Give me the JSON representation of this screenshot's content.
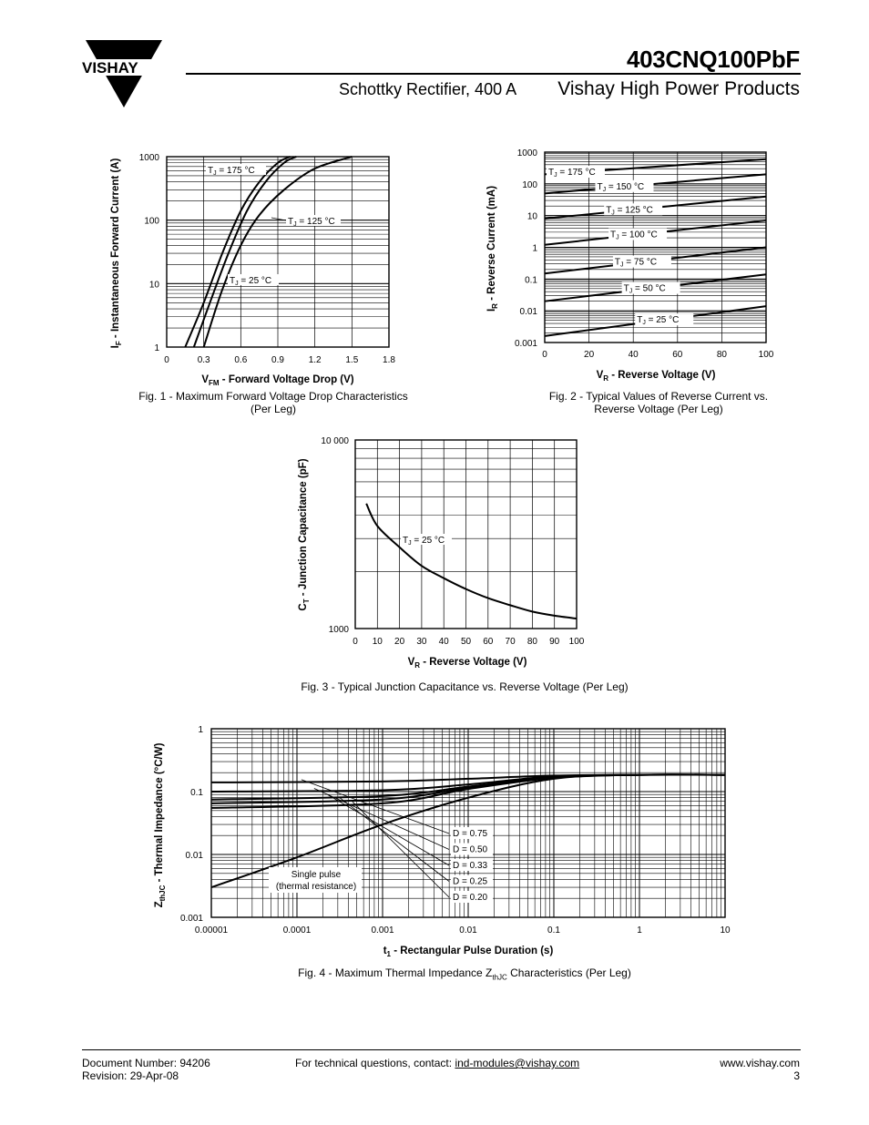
{
  "header": {
    "logo_text": "VISHAY",
    "part_number": "403CNQ100PbF",
    "subtitle_left": "Schottky Rectifier, 400 A",
    "subtitle_right": "Vishay High Power Products"
  },
  "figures": {
    "fig1": {
      "caption_line1": "Fig. 1 - Maximum Forward Voltage Drop Characteristics",
      "caption_line2": "(Per Leg)",
      "xlabel_main": "V",
      "xlabel_sub": "FM",
      "xlabel_rest": " - Forward Voltage Drop (V)",
      "ylabel_main": "I",
      "ylabel_sub": "F",
      "ylabel_rest": " - Instantaneous Forward Current (A)",
      "label_175": "= 175 °C",
      "label_125": "= 125 °C",
      "label_25": "= 25 °C"
    },
    "fig2": {
      "caption_line1": "Fig. 2 - Typical Values of Reverse Current vs.",
      "caption_line2": "Reverse Voltage (Per Leg)",
      "xlabel_main": "V",
      "xlabel_sub": "R",
      "xlabel_rest": " - Reverse Voltage (V)",
      "ylabel_main": "I",
      "ylabel_sub": "R",
      "ylabel_rest": " - Reverse Current (mA)"
    },
    "fig3": {
      "caption": "Fig. 3 - Typical Junction Capacitance vs. Reverse Voltage (Per Leg)",
      "xlabel_main": "V",
      "xlabel_sub": "R",
      "xlabel_rest": " - Reverse Voltage (V)",
      "ylabel_main": "C",
      "ylabel_sub": "T",
      "ylabel_rest": " - Junction Capacitance (pF)",
      "label_25": "= 25 °C"
    },
    "fig4": {
      "caption_pre": "Fig. 4 - Maximum Thermal Impedance Z",
      "caption_sub": "thJC",
      "caption_post": " Characteristics (Per Leg)",
      "xlabel_main": "t",
      "xlabel_sub": "1",
      "xlabel_rest": " - Rectangular Pulse Duration (s)",
      "ylabel_main": "Z",
      "ylabel_sub": "thJC",
      "ylabel_rest": " - Thermal Impedance (°C/W)",
      "single_pulse_1": "Single pulse",
      "single_pulse_2": "(thermal resistance)"
    }
  },
  "chart_data": [
    {
      "id": "fig1",
      "type": "line",
      "xlabel": "VFM - Forward Voltage Drop (V)",
      "ylabel": "IF - Instantaneous Forward Current (A)",
      "xlim": [
        0,
        1.8
      ],
      "ylim": [
        1,
        1000
      ],
      "y_scale": "log",
      "x_ticks": [
        "0",
        "0.3",
        "0.6",
        "0.9",
        "1.2",
        "1.5",
        "1.8"
      ],
      "y_ticks": [
        "1",
        "10",
        "100",
        "1000"
      ],
      "series": [
        {
          "name": "TJ = 175 °C",
          "points": [
            [
              0.15,
              1
            ],
            [
              0.3,
              5
            ],
            [
              0.45,
              30
            ],
            [
              0.6,
              140
            ],
            [
              0.75,
              400
            ],
            [
              0.9,
              800
            ],
            [
              1.0,
              1000
            ]
          ]
        },
        {
          "name": "TJ = 125 °C",
          "points": [
            [
              0.22,
              1
            ],
            [
              0.35,
              5
            ],
            [
              0.5,
              30
            ],
            [
              0.65,
              140
            ],
            [
              0.8,
              400
            ],
            [
              0.95,
              800
            ],
            [
              1.05,
              1000
            ]
          ]
        },
        {
          "name": "TJ = 25 °C",
          "points": [
            [
              0.3,
              1
            ],
            [
              0.45,
              8
            ],
            [
              0.6,
              40
            ],
            [
              0.75,
              120
            ],
            [
              0.95,
              300
            ],
            [
              1.2,
              650
            ],
            [
              1.5,
              1000
            ]
          ]
        }
      ]
    },
    {
      "id": "fig2",
      "type": "line",
      "xlabel": "VR - Reverse Voltage (V)",
      "ylabel": "IR - Reverse Current (mA)",
      "xlim": [
        0,
        100
      ],
      "ylim": [
        0.001,
        1000
      ],
      "y_scale": "log",
      "x_ticks": [
        "0",
        "20",
        "40",
        "60",
        "80",
        "100"
      ],
      "y_ticks": [
        "0.001",
        "0.01",
        "0.1",
        "1",
        "10",
        "100",
        "1000"
      ],
      "series": [
        {
          "name": "TJ = 175 °C",
          "points": [
            [
              0,
              200
            ],
            [
              100,
              600
            ]
          ]
        },
        {
          "name": "TJ = 150 °C",
          "points": [
            [
              0,
              50
            ],
            [
              100,
              200
            ]
          ]
        },
        {
          "name": "TJ = 125 °C",
          "points": [
            [
              0,
              8
            ],
            [
              100,
              40
            ]
          ]
        },
        {
          "name": "TJ = 100 °C",
          "points": [
            [
              0,
              1.2
            ],
            [
              100,
              7
            ]
          ]
        },
        {
          "name": "TJ = 75 °C",
          "points": [
            [
              0,
              0.15
            ],
            [
              100,
              1
            ]
          ]
        },
        {
          "name": "TJ = 50 °C",
          "points": [
            [
              0,
              0.02
            ],
            [
              100,
              0.14
            ]
          ]
        },
        {
          "name": "TJ = 25 °C",
          "points": [
            [
              0,
              0.0016
            ],
            [
              100,
              0.014
            ]
          ]
        }
      ]
    },
    {
      "id": "fig3",
      "type": "line",
      "xlabel": "VR - Reverse Voltage (V)",
      "ylabel": "CT - Junction Capacitance (pF)",
      "xlim": [
        0,
        100
      ],
      "ylim": [
        1000,
        10000
      ],
      "y_scale": "log",
      "x_ticks": [
        "0",
        "10",
        "20",
        "30",
        "40",
        "50",
        "60",
        "70",
        "80",
        "90",
        "100"
      ],
      "y_ticks": [
        "1000",
        "10 000"
      ],
      "series": [
        {
          "name": "TJ = 25 °C",
          "points": [
            [
              5,
              4600
            ],
            [
              10,
              3500
            ],
            [
              20,
              2700
            ],
            [
              30,
              2150
            ],
            [
              40,
              1850
            ],
            [
              50,
              1620
            ],
            [
              60,
              1450
            ],
            [
              70,
              1330
            ],
            [
              80,
              1230
            ],
            [
              90,
              1170
            ],
            [
              100,
              1130
            ]
          ]
        }
      ]
    },
    {
      "id": "fig4",
      "type": "line",
      "xlabel": "t1 - Rectangular Pulse Duration (s)",
      "ylabel": "ZthJC - Thermal Impedance (°C/W)",
      "xlim": [
        1e-05,
        10
      ],
      "ylim": [
        0.001,
        1
      ],
      "x_scale": "log",
      "y_scale": "log",
      "x_ticks": [
        "0.00001",
        "0.0001",
        "0.001",
        "0.01",
        "0.1",
        "1",
        "10"
      ],
      "y_ticks": [
        "0.001",
        "0.01",
        "0.1",
        "1"
      ],
      "series": [
        {
          "name": "D = 0.75",
          "points": [
            [
              1e-05,
              0.14
            ],
            [
              0.001,
              0.145
            ],
            [
              0.01,
              0.16
            ],
            [
              0.1,
              0.18
            ],
            [
              1,
              0.185
            ],
            [
              10,
              0.185
            ]
          ]
        },
        {
          "name": "D = 0.50",
          "points": [
            [
              1e-05,
              0.1
            ],
            [
              0.001,
              0.105
            ],
            [
              0.01,
              0.13
            ],
            [
              0.1,
              0.175
            ],
            [
              1,
              0.185
            ],
            [
              10,
              0.185
            ]
          ]
        },
        {
          "name": "D = 0.33",
          "points": [
            [
              1e-05,
              0.075
            ],
            [
              0.001,
              0.085
            ],
            [
              0.01,
              0.12
            ],
            [
              0.1,
              0.17
            ],
            [
              1,
              0.185
            ],
            [
              10,
              0.185
            ]
          ]
        },
        {
          "name": "D = 0.25",
          "points": [
            [
              1e-05,
              0.065
            ],
            [
              0.001,
              0.075
            ],
            [
              0.01,
              0.115
            ],
            [
              0.1,
              0.17
            ],
            [
              1,
              0.185
            ],
            [
              10,
              0.185
            ]
          ]
        },
        {
          "name": "D = 0.20",
          "points": [
            [
              1e-05,
              0.055
            ],
            [
              0.001,
              0.065
            ],
            [
              0.01,
              0.11
            ],
            [
              0.1,
              0.165
            ],
            [
              1,
              0.185
            ],
            [
              10,
              0.185
            ]
          ]
        },
        {
          "name": "Single pulse (thermal resistance)",
          "points": [
            [
              1e-05,
              0.003
            ],
            [
              0.0001,
              0.009
            ],
            [
              0.001,
              0.03
            ],
            [
              0.01,
              0.08
            ],
            [
              0.1,
              0.16
            ],
            [
              1,
              0.185
            ],
            [
              10,
              0.185
            ]
          ]
        }
      ]
    }
  ],
  "footer": {
    "doc_number": "Document Number: 94206",
    "revision": "Revision: 29-Apr-08",
    "contact_text": "For technical questions, contact: ",
    "contact_email": "ind-modules@vishay.com",
    "website": "www.vishay.com",
    "page": "3"
  }
}
